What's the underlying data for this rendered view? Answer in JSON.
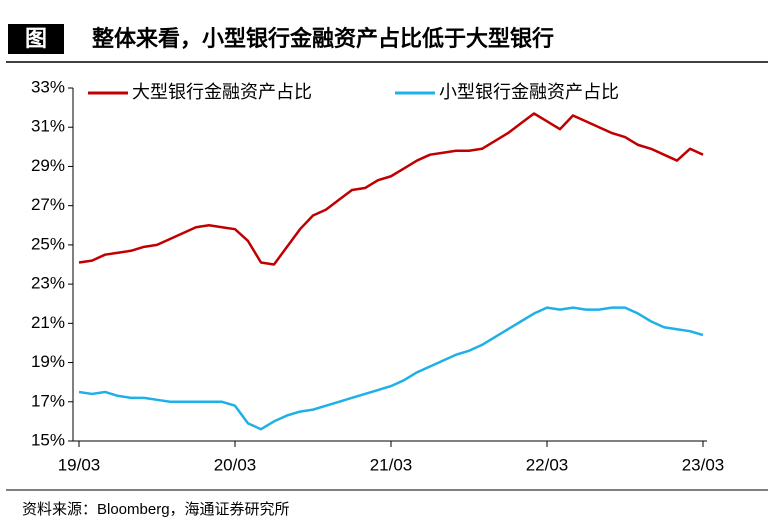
{
  "chart_data": {
    "type": "line",
    "figure_label": "图",
    "title": "整体来看，小型银行金融资产占比低于大型银行",
    "source": "资料来源：Bloomberg，海通证券研究所",
    "x": [
      0,
      1,
      2,
      3,
      4,
      5,
      6,
      7,
      8,
      9,
      10,
      11,
      12,
      13,
      14,
      15,
      16,
      17,
      18,
      19,
      20,
      21,
      22,
      23,
      24,
      25,
      26,
      27,
      28,
      29,
      30,
      31,
      32,
      33,
      34,
      35,
      36,
      37,
      38,
      39,
      40,
      41,
      42,
      43,
      44,
      45,
      46,
      47,
      48
    ],
    "xlim": [
      0,
      48
    ],
    "xticks": [
      {
        "value": 0,
        "label": "19/03"
      },
      {
        "value": 12,
        "label": "20/03"
      },
      {
        "value": 24,
        "label": "21/03"
      },
      {
        "value": 36,
        "label": "22/03"
      },
      {
        "value": 48,
        "label": "23/03"
      }
    ],
    "ylim": [
      15,
      33
    ],
    "yticks": [
      {
        "value": 15,
        "label": "15%"
      },
      {
        "value": 17,
        "label": "17%"
      },
      {
        "value": 19,
        "label": "19%"
      },
      {
        "value": 21,
        "label": "21%"
      },
      {
        "value": 23,
        "label": "23%"
      },
      {
        "value": 25,
        "label": "25%"
      },
      {
        "value": 27,
        "label": "27%"
      },
      {
        "value": 29,
        "label": "29%"
      },
      {
        "value": 31,
        "label": "31%"
      },
      {
        "value": 33,
        "label": "33%"
      }
    ],
    "legend": "top",
    "series": [
      {
        "name": "大型银行金融资产占比",
        "color": "#c00000",
        "values": [
          24.1,
          24.2,
          24.5,
          24.6,
          24.7,
          24.9,
          25.0,
          25.3,
          25.6,
          25.9,
          26.0,
          25.9,
          25.8,
          25.2,
          24.1,
          24.0,
          24.9,
          25.8,
          26.5,
          26.8,
          27.3,
          27.8,
          27.9,
          28.3,
          28.5,
          28.9,
          29.3,
          29.6,
          29.7,
          29.8,
          29.8,
          29.9,
          30.3,
          30.7,
          31.2,
          31.7,
          31.3,
          30.9,
          31.6,
          31.3,
          31.0,
          30.7,
          30.5,
          30.1,
          29.9,
          29.6,
          29.3,
          29.9,
          29.6
        ]
      },
      {
        "name": "小型银行金融资产占比",
        "color": "#1fb0e6",
        "values": [
          17.5,
          17.4,
          17.5,
          17.3,
          17.2,
          17.2,
          17.1,
          17.0,
          17.0,
          17.0,
          17.0,
          17.0,
          16.8,
          15.9,
          15.6,
          16.0,
          16.3,
          16.5,
          16.6,
          16.8,
          17.0,
          17.2,
          17.4,
          17.6,
          17.8,
          18.1,
          18.5,
          18.8,
          19.1,
          19.4,
          19.6,
          19.9,
          20.3,
          20.7,
          21.1,
          21.5,
          21.8,
          21.7,
          21.8,
          21.7,
          21.7,
          21.8,
          21.8,
          21.5,
          21.1,
          20.8,
          20.7,
          20.6,
          20.4
        ]
      }
    ]
  }
}
